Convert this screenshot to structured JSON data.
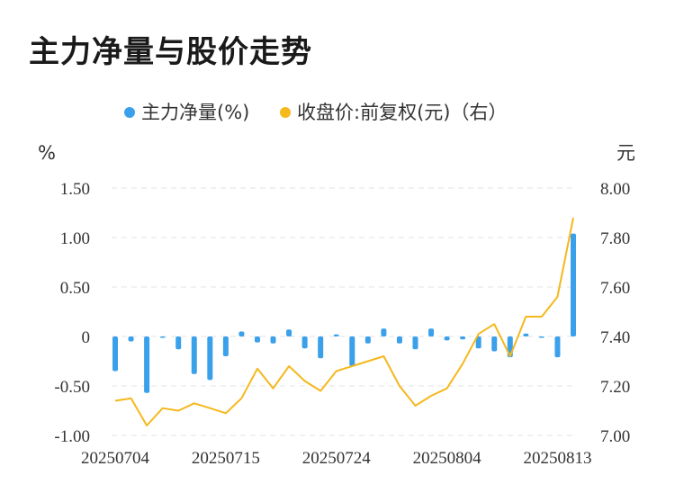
{
  "title": "主力净量与股价走势",
  "legend": {
    "series1_label": "主力净量(%)",
    "series2_label": "收盘价:前复权(元)（右）"
  },
  "chart_data": {
    "type": "bar+line",
    "title": "主力净量与股价走势",
    "y_left_unit": "%",
    "y_right_unit": "元",
    "y_left_ticks": [
      "1.50",
      "1.00",
      "0.50",
      "0",
      "-0.50",
      "-1.00"
    ],
    "y_right_ticks": [
      "8.00",
      "7.80",
      "7.60",
      "7.40",
      "7.20",
      "7.00"
    ],
    "ylim_left": [
      -1.0,
      1.5
    ],
    "ylim_right": [
      7.0,
      8.0
    ],
    "x_tick_labels": [
      "20250704",
      "20250715",
      "20250724",
      "20250804",
      "20250813"
    ],
    "x_tick_indices": [
      0,
      7,
      14,
      21,
      28
    ],
    "grid": true,
    "legend_position": "top-center",
    "colors": {
      "bars": "#3aa0ea",
      "line": "#f5b81d"
    },
    "series": [
      {
        "name": "主力净量(%)",
        "type": "bar",
        "axis": "left",
        "values": [
          -0.35,
          -0.05,
          -0.57,
          -0.01,
          -0.13,
          -0.38,
          -0.44,
          -0.2,
          0.05,
          -0.06,
          -0.07,
          0.07,
          -0.12,
          -0.22,
          0.02,
          -0.3,
          -0.07,
          0.08,
          -0.07,
          -0.13,
          0.08,
          -0.04,
          -0.03,
          -0.12,
          -0.15,
          -0.21,
          0.03,
          -0.01,
          -0.21,
          1.04
        ]
      },
      {
        "name": "收盘价:前复权(元)（右）",
        "type": "line",
        "axis": "right",
        "values": [
          7.14,
          7.15,
          7.04,
          7.11,
          7.1,
          7.13,
          7.11,
          7.09,
          7.15,
          7.27,
          7.19,
          7.28,
          7.22,
          7.18,
          7.26,
          7.28,
          7.3,
          7.32,
          7.2,
          7.12,
          7.16,
          7.19,
          7.29,
          7.41,
          7.45,
          7.32,
          7.48,
          7.48,
          7.56,
          7.88
        ]
      }
    ]
  }
}
